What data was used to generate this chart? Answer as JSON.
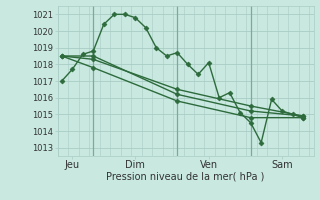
{
  "background_color": "#c8e8e0",
  "grid_color": "#a8ccc4",
  "vline_color": "#7aaa9a",
  "line_color": "#2d6b3c",
  "xlabel": "Pression niveau de la mer( hPa )",
  "ylim": [
    1012.5,
    1021.5
  ],
  "yticks": [
    1013,
    1014,
    1015,
    1016,
    1017,
    1018,
    1019,
    1020,
    1021
  ],
  "xlim": [
    -0.2,
    12.0
  ],
  "day_labels": [
    "Jeu",
    "Dim",
    "Ven",
    "Sam"
  ],
  "day_positions": [
    0.5,
    3.5,
    7.0,
    10.5
  ],
  "vlines": [
    1.5,
    5.5,
    9.0
  ],
  "series": [
    {
      "x": [
        0.0,
        0.5,
        1.0,
        1.5,
        2.0,
        2.5,
        3.0,
        3.5,
        4.0,
        4.5,
        5.0,
        5.5,
        6.0,
        6.5,
        7.0,
        7.5,
        8.0,
        8.5,
        9.0,
        9.5,
        10.0,
        10.5,
        11.0,
        11.5
      ],
      "y": [
        1017.0,
        1017.7,
        1018.6,
        1018.8,
        1020.4,
        1021.0,
        1021.0,
        1020.8,
        1020.2,
        1019.0,
        1018.5,
        1018.7,
        1018.0,
        1017.4,
        1018.1,
        1016.0,
        1016.3,
        1015.1,
        1014.5,
        1013.3,
        1015.9,
        1015.2,
        1015.0,
        1014.8
      ]
    },
    {
      "x": [
        0.0,
        1.5,
        5.5,
        9.0,
        11.5
      ],
      "y": [
        1018.5,
        1018.5,
        1016.2,
        1015.2,
        1014.9
      ]
    },
    {
      "x": [
        0.0,
        1.5,
        5.5,
        9.0,
        11.5
      ],
      "y": [
        1018.5,
        1018.3,
        1016.5,
        1015.5,
        1014.9
      ]
    },
    {
      "x": [
        0.0,
        1.5,
        5.5,
        9.0,
        11.5
      ],
      "y": [
        1018.5,
        1017.8,
        1015.8,
        1014.8,
        1014.8
      ]
    }
  ],
  "marker": "D",
  "marker_size": 2.5,
  "line_width": 1.0,
  "xlabel_fontsize": 7,
  "tick_fontsize": 6
}
